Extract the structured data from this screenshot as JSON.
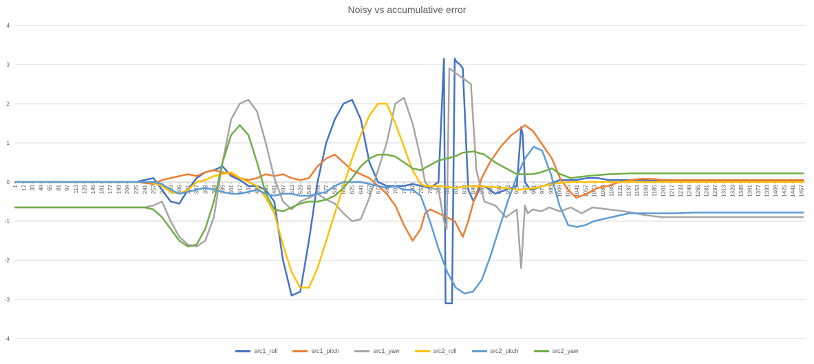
{
  "chart_data": {
    "type": "line",
    "title": "Noisy vs accumulative error",
    "xlabel": "",
    "ylabel": "",
    "ylim": [
      -4,
      4
    ],
    "yticks": [
      -4,
      -3,
      -2,
      -1,
      0,
      1,
      2,
      3,
      4
    ],
    "xlim": [
      1,
      1465
    ],
    "xtick_start": 1,
    "xtick_step": 16,
    "grid": true,
    "legend_position": "bottom",
    "series": [
      {
        "name": "src1_roll",
        "color": "#4472C4",
        "x": [
          1,
          225,
          240,
          257,
          273,
          289,
          305,
          321,
          337,
          353,
          369,
          385,
          401,
          417,
          433,
          449,
          465,
          481,
          497,
          513,
          529,
          545,
          561,
          577,
          593,
          609,
          625,
          641,
          657,
          673,
          689,
          705,
          721,
          737,
          753,
          769,
          785,
          795,
          798,
          801,
          805,
          810,
          815,
          817,
          820,
          825,
          830,
          840,
          850,
          860,
          865,
          875,
          890,
          910,
          930,
          938,
          941,
          945,
          955,
          980,
          1000,
          1010,
          1020,
          1040,
          1060,
          1080,
          1100,
          1120,
          1140,
          1160,
          1180,
          1200,
          1220,
          1240,
          1460
        ],
        "y": [
          0,
          0,
          0.05,
          0.1,
          -0.2,
          -0.5,
          -0.55,
          -0.2,
          0.1,
          0.25,
          0.3,
          0.4,
          0.15,
          0.05,
          -0.1,
          -0.1,
          -0.2,
          -0.5,
          -2.0,
          -2.9,
          -2.8,
          -1.5,
          0.0,
          1.0,
          1.6,
          2.0,
          2.1,
          1.6,
          0.5,
          0.0,
          -0.1,
          -0.1,
          -0.1,
          -0.05,
          -0.1,
          -0.15,
          0.0,
          3.15,
          -3.1,
          -3.1,
          -3.1,
          -3.1,
          3.15,
          3.1,
          3.05,
          3.0,
          2.9,
          -0.2,
          -0.5,
          -0.2,
          -0.1,
          -0.15,
          -0.3,
          -0.2,
          -0.1,
          1.4,
          1.2,
          0.0,
          -0.2,
          -0.1,
          0.0,
          0.05,
          0.05,
          0.05,
          0.1,
          0.1,
          0.05,
          0.05,
          0.05,
          0.05,
          0.03,
          0.03,
          0.02,
          0.02,
          0.02
        ]
      },
      {
        "name": "src1_pitch",
        "color": "#ED7D31",
        "x": [
          1,
          225,
          257,
          273,
          289,
          305,
          321,
          337,
          353,
          369,
          385,
          401,
          417,
          433,
          449,
          465,
          481,
          497,
          513,
          529,
          545,
          561,
          577,
          593,
          609,
          625,
          641,
          657,
          673,
          689,
          705,
          721,
          737,
          752,
          760,
          770,
          785,
          800,
          815,
          830,
          840,
          850,
          865,
          880,
          900,
          920,
          945,
          960,
          975,
          995,
          1010,
          1025,
          1040,
          1060,
          1080,
          1100,
          1120,
          1140,
          1160,
          1180,
          1200,
          1220,
          1240,
          1460
        ],
        "y": [
          0,
          0,
          -0.05,
          0.05,
          0.1,
          0.15,
          0.2,
          0.15,
          0.25,
          0.3,
          0.25,
          0.2,
          0.1,
          0.05,
          0.1,
          0.2,
          0.15,
          0.2,
          0.1,
          0.05,
          0.1,
          0.4,
          0.6,
          0.7,
          0.5,
          0.3,
          0.2,
          0.1,
          -0.1,
          -0.3,
          -0.6,
          -1.1,
          -1.5,
          -1.2,
          -0.8,
          -0.7,
          -0.8,
          -0.9,
          -1.0,
          -1.4,
          -1.0,
          -0.5,
          0.1,
          0.5,
          0.9,
          1.2,
          1.45,
          1.3,
          1.0,
          0.6,
          0.1,
          -0.2,
          -0.4,
          -0.3,
          -0.15,
          -0.1,
          0.0,
          0.05,
          0.08,
          0.08,
          0.05,
          0.05,
          0.05,
          0.05
        ]
      },
      {
        "name": "src1_yaw",
        "color": "#A5A5A5",
        "x": [
          1,
          241,
          257,
          273,
          289,
          305,
          321,
          337,
          353,
          369,
          385,
          401,
          417,
          433,
          449,
          465,
          481,
          497,
          513,
          529,
          545,
          561,
          577,
          593,
          609,
          625,
          641,
          657,
          673,
          689,
          705,
          721,
          737,
          752,
          760,
          770,
          785,
          795,
          800,
          805,
          815,
          825,
          835,
          845,
          855,
          870,
          890,
          910,
          930,
          938,
          945,
          950,
          960,
          975,
          990,
          1000,
          1010,
          1030,
          1050,
          1070,
          1100,
          1130,
          1170,
          1200,
          1260,
          1460
        ],
        "y": [
          -0.65,
          -0.65,
          -0.6,
          -0.5,
          -1.0,
          -1.4,
          -1.6,
          -1.65,
          -1.5,
          -0.9,
          0.5,
          1.6,
          2.0,
          2.1,
          1.8,
          1.0,
          0.1,
          -0.5,
          -0.7,
          -0.5,
          -0.4,
          -0.3,
          -0.45,
          -0.55,
          -0.8,
          -1.0,
          -0.95,
          -0.4,
          0.3,
          1.0,
          2.0,
          2.15,
          1.5,
          0.6,
          0.0,
          -0.15,
          -0.2,
          -1.0,
          -1.2,
          2.9,
          2.8,
          2.7,
          2.6,
          2.5,
          0.3,
          -0.5,
          -0.6,
          -0.9,
          -0.7,
          -2.2,
          -0.6,
          -0.8,
          -0.7,
          -0.75,
          -0.65,
          -0.7,
          -0.75,
          -0.65,
          -0.8,
          -0.65,
          -0.7,
          -0.75,
          -0.85,
          -0.9,
          -0.9,
          -0.9
        ]
      },
      {
        "name": "src2_roll",
        "color": "#FFC000",
        "x": [
          1,
          241,
          257,
          273,
          289,
          305,
          321,
          337,
          353,
          369,
          385,
          401,
          417,
          433,
          449,
          465,
          481,
          497,
          513,
          529,
          545,
          561,
          577,
          593,
          609,
          625,
          641,
          657,
          673,
          689,
          705,
          721,
          737,
          752,
          760,
          785,
          815,
          845,
          875,
          905,
          935,
          965,
          995,
          1025,
          1055,
          1085,
          1115,
          1145,
          1175,
          1205,
          1460
        ],
        "y": [
          0,
          0,
          -0.02,
          -0.1,
          -0.25,
          -0.3,
          -0.2,
          0.0,
          0.05,
          0.15,
          0.2,
          0.25,
          0.1,
          0.0,
          -0.1,
          -0.4,
          -0.8,
          -1.6,
          -2.3,
          -2.7,
          -2.7,
          -2.2,
          -1.5,
          -0.8,
          -0.1,
          0.6,
          1.2,
          1.7,
          2.0,
          2.0,
          1.5,
          0.9,
          0.3,
          -0.05,
          -0.1,
          -0.1,
          -0.15,
          -0.1,
          -0.12,
          -0.15,
          -0.2,
          -0.15,
          -0.05,
          0.0,
          0.0,
          0.0,
          0.0,
          0.0,
          0.0,
          0.0,
          0.0
        ]
      },
      {
        "name": "src2_pitch",
        "color": "#5B9BD5",
        "x": [
          1,
          257,
          273,
          289,
          305,
          321,
          337,
          353,
          369,
          385,
          401,
          417,
          433,
          449,
          465,
          481,
          497,
          513,
          529,
          545,
          561,
          577,
          593,
          609,
          625,
          641,
          657,
          673,
          689,
          705,
          721,
          737,
          752,
          769,
          785,
          801,
          817,
          833,
          849,
          865,
          881,
          897,
          913,
          929,
          945,
          961,
          977,
          993,
          1009,
          1025,
          1041,
          1057,
          1073,
          1089,
          1105,
          1121,
          1137,
          1153,
          1169,
          1185,
          1201,
          1220,
          1260,
          1460
        ],
        "y": [
          0,
          0,
          -0.05,
          -0.2,
          -0.3,
          -0.25,
          -0.2,
          -0.15,
          -0.2,
          -0.25,
          -0.3,
          -0.3,
          -0.25,
          -0.2,
          -0.3,
          -0.35,
          -0.3,
          -0.3,
          -0.35,
          -0.35,
          -0.3,
          -0.25,
          -0.1,
          0.0,
          0.0,
          0.0,
          -0.05,
          -0.1,
          -0.15,
          -0.1,
          -0.2,
          -0.2,
          -0.35,
          -1.0,
          -1.7,
          -2.3,
          -2.7,
          -2.85,
          -2.8,
          -2.5,
          -1.9,
          -1.2,
          -0.5,
          0.1,
          0.6,
          0.9,
          0.8,
          0.2,
          -0.6,
          -1.1,
          -1.15,
          -1.1,
          -1.0,
          -0.95,
          -0.9,
          -0.85,
          -0.8,
          -0.8,
          -0.8,
          -0.8,
          -0.8,
          -0.8,
          -0.78,
          -0.78
        ]
      },
      {
        "name": "src2_yaw",
        "color": "#70AD47",
        "x": [
          1,
          241,
          257,
          273,
          289,
          305,
          321,
          337,
          353,
          369,
          385,
          401,
          417,
          433,
          449,
          465,
          481,
          497,
          513,
          529,
          545,
          561,
          577,
          593,
          609,
          625,
          641,
          657,
          673,
          689,
          705,
          721,
          737,
          752,
          785,
          815,
          830,
          850,
          870,
          890,
          910,
          930,
          945,
          960,
          975,
          995,
          1010,
          1030,
          1060,
          1100,
          1140,
          1180,
          1220,
          1460
        ],
        "y": [
          -0.65,
          -0.65,
          -0.7,
          -0.9,
          -1.2,
          -1.5,
          -1.65,
          -1.6,
          -1.2,
          -0.5,
          0.5,
          1.2,
          1.45,
          1.2,
          0.5,
          -0.3,
          -0.7,
          -0.75,
          -0.65,
          -0.55,
          -0.5,
          -0.5,
          -0.45,
          -0.35,
          -0.15,
          0.1,
          0.4,
          0.6,
          0.7,
          0.7,
          0.65,
          0.5,
          0.35,
          0.3,
          0.55,
          0.65,
          0.75,
          0.78,
          0.7,
          0.5,
          0.35,
          0.2,
          0.2,
          0.2,
          0.25,
          0.35,
          0.2,
          0.1,
          0.15,
          0.2,
          0.22,
          0.22,
          0.22,
          0.22
        ]
      }
    ]
  }
}
